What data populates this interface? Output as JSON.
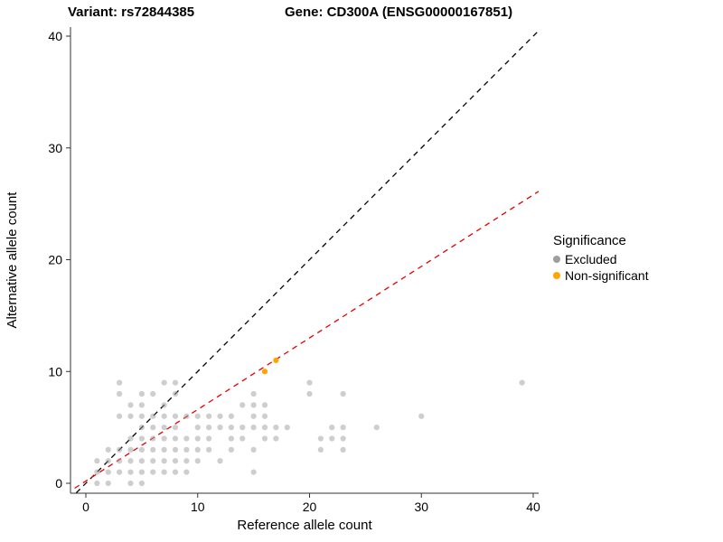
{
  "title": {
    "variant": "Variant: rs72844385",
    "gene": "Gene: CD300A (ENSG00000167851)"
  },
  "legend": {
    "title": "Significance",
    "items": [
      {
        "label": "Excluded",
        "color": "#9e9e9e"
      },
      {
        "label": "Non-significant",
        "color": "#ffa500"
      }
    ]
  },
  "chart_data": {
    "type": "scatter",
    "xlabel": "Reference allele count",
    "ylabel": "Alternative allele count",
    "xlim": [
      -2,
      42
    ],
    "ylim": [
      -2,
      42
    ],
    "xticks": [
      0,
      10,
      20,
      30,
      40
    ],
    "yticks": [
      0,
      10,
      20,
      30,
      40
    ],
    "grid": false,
    "legend_position": "right",
    "series": [
      {
        "name": "Excluded",
        "color": "#9e9e9e",
        "opacity": 0.5,
        "points": [
          [
            1,
            0
          ],
          [
            2,
            0
          ],
          [
            4,
            0
          ],
          [
            5,
            0
          ],
          [
            1,
            1
          ],
          [
            2,
            1
          ],
          [
            3,
            1
          ],
          [
            4,
            1
          ],
          [
            5,
            1
          ],
          [
            6,
            1
          ],
          [
            7,
            1
          ],
          [
            8,
            1
          ],
          [
            9,
            1
          ],
          [
            15,
            1
          ],
          [
            1,
            2
          ],
          [
            2,
            2
          ],
          [
            3,
            2
          ],
          [
            4,
            2
          ],
          [
            5,
            2
          ],
          [
            6,
            2
          ],
          [
            7,
            2
          ],
          [
            8,
            2
          ],
          [
            9,
            2
          ],
          [
            10,
            2
          ],
          [
            12,
            2
          ],
          [
            2,
            3
          ],
          [
            3,
            3
          ],
          [
            4,
            3
          ],
          [
            5,
            3
          ],
          [
            6,
            3
          ],
          [
            7,
            3
          ],
          [
            8,
            3
          ],
          [
            9,
            3
          ],
          [
            10,
            3
          ],
          [
            11,
            3
          ],
          [
            13,
            3
          ],
          [
            15,
            3
          ],
          [
            21,
            3
          ],
          [
            23,
            3
          ],
          [
            4,
            4
          ],
          [
            5,
            4
          ],
          [
            6,
            4
          ],
          [
            7,
            4
          ],
          [
            8,
            4
          ],
          [
            9,
            4
          ],
          [
            10,
            4
          ],
          [
            11,
            4
          ],
          [
            13,
            4
          ],
          [
            14,
            4
          ],
          [
            16,
            4
          ],
          [
            17,
            4
          ],
          [
            21,
            4
          ],
          [
            22,
            4
          ],
          [
            23,
            4
          ],
          [
            5,
            5
          ],
          [
            6,
            5
          ],
          [
            7,
            5
          ],
          [
            8,
            5
          ],
          [
            10,
            5
          ],
          [
            11,
            5
          ],
          [
            12,
            5
          ],
          [
            13,
            5
          ],
          [
            14,
            5
          ],
          [
            15,
            5
          ],
          [
            16,
            5
          ],
          [
            17,
            5
          ],
          [
            18,
            5
          ],
          [
            22,
            5
          ],
          [
            23,
            5
          ],
          [
            26,
            5
          ],
          [
            3,
            6
          ],
          [
            4,
            6
          ],
          [
            5,
            6
          ],
          [
            6,
            6
          ],
          [
            7,
            6
          ],
          [
            8,
            6
          ],
          [
            9,
            6
          ],
          [
            10,
            6
          ],
          [
            11,
            6
          ],
          [
            12,
            6
          ],
          [
            13,
            6
          ],
          [
            15,
            6
          ],
          [
            16,
            6
          ],
          [
            30,
            6
          ],
          [
            4,
            7
          ],
          [
            5,
            7
          ],
          [
            7,
            7
          ],
          [
            14,
            7
          ],
          [
            15,
            7
          ],
          [
            16,
            7
          ],
          [
            3,
            8
          ],
          [
            5,
            8
          ],
          [
            6,
            8
          ],
          [
            8,
            8
          ],
          [
            15,
            8
          ],
          [
            20,
            8
          ],
          [
            23,
            8
          ],
          [
            3,
            9
          ],
          [
            7,
            9
          ],
          [
            8,
            9
          ],
          [
            20,
            9
          ],
          [
            39,
            9
          ]
        ]
      },
      {
        "name": "Non-significant",
        "color": "#ffa500",
        "opacity": 1,
        "points": [
          [
            16,
            10
          ],
          [
            17,
            11
          ]
        ]
      }
    ],
    "lines": [
      {
        "name": "identity",
        "slope": 1,
        "intercept": 0,
        "color": "#000000",
        "dash": "6,5"
      },
      {
        "name": "regression",
        "slope": 0.64,
        "intercept": 0.2,
        "color": "#e60000",
        "dash": "6,5"
      }
    ]
  }
}
